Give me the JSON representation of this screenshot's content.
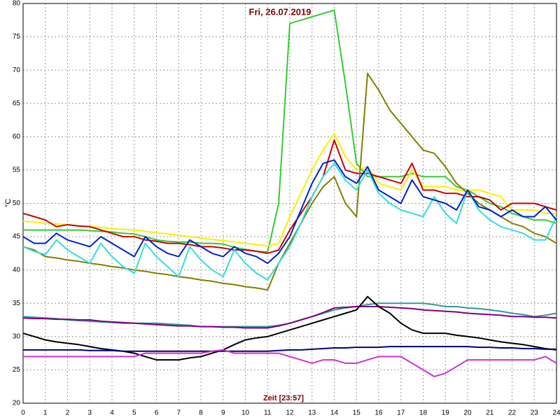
{
  "chart_data": {
    "type": "line",
    "title": "Fri, 26.07.2019",
    "xlabel": "Zeit [23:57]",
    "ylabel": "°C",
    "x": [
      0,
      0.5,
      1,
      1.5,
      2,
      2.5,
      3,
      3.5,
      4,
      4.5,
      5,
      5.5,
      6,
      6.5,
      7,
      7.5,
      8,
      8.5,
      9,
      9.5,
      10,
      10.5,
      11,
      11.5,
      12,
      12.5,
      13,
      13.5,
      14,
      14.5,
      15,
      15.5,
      16,
      16.5,
      17,
      17.5,
      18,
      18.5,
      19,
      19.5,
      20,
      20.5,
      21,
      21.5,
      22,
      22.5,
      23,
      23.5,
      24
    ],
    "xlim": [
      0,
      24
    ],
    "xticks": [
      0,
      1,
      2,
      3,
      4,
      5,
      6,
      7,
      8,
      9,
      10,
      11,
      12,
      13,
      14,
      15,
      16,
      17,
      18,
      19,
      20,
      21,
      22,
      23,
      24
    ],
    "ylim": [
      20,
      80
    ],
    "yticks": [
      20,
      25,
      30,
      35,
      40,
      45,
      50,
      55,
      60,
      65,
      70,
      75,
      80
    ],
    "grid": true,
    "series": [
      {
        "color": "#33cc33",
        "values": [
          46,
          46,
          46,
          46,
          46,
          46,
          45.9,
          45.8,
          45.7,
          45.5,
          45.4,
          45,
          44.5,
          44.3,
          44.2,
          44.2,
          44,
          44,
          43.9,
          43.4,
          43.1,
          42.8,
          42.7,
          50,
          77,
          77.5,
          78,
          78.5,
          79,
          68,
          56,
          54,
          54,
          54,
          54,
          54.5,
          54,
          54,
          54,
          52.5,
          52,
          51,
          50,
          49.5,
          48.5,
          48,
          47.5,
          47.5,
          47
        ]
      },
      {
        "color": "#ffee00",
        "values": [
          47.3,
          47.2,
          47,
          46.9,
          46.8,
          46.6,
          46.5,
          46.4,
          46.2,
          46.1,
          46,
          45.8,
          45.6,
          45.4,
          45.2,
          45,
          44.8,
          44.6,
          44.4,
          44.2,
          44,
          43.8,
          43.6,
          44,
          48,
          51.5,
          55,
          58,
          60.5,
          57,
          55,
          55.5,
          53,
          52.5,
          52,
          55,
          52.5,
          52.5,
          52.5,
          52,
          52,
          52,
          51.5,
          51,
          49,
          49,
          49,
          48.5,
          48.5
        ]
      },
      {
        "color": "#cc0000",
        "values": [
          48.5,
          48,
          47.5,
          46.5,
          46.8,
          46.6,
          46.5,
          46,
          45.5,
          45,
          45,
          44.5,
          44.3,
          44,
          44,
          43.8,
          43.5,
          43.5,
          43.3,
          43,
          43,
          42.8,
          42.5,
          43,
          46,
          48.5,
          51,
          54,
          59.5,
          55,
          54.5,
          54.5,
          54,
          53.5,
          53,
          56,
          52,
          52,
          51.5,
          51.5,
          51,
          51,
          50.5,
          49,
          50,
          50,
          50,
          49.5,
          49
        ]
      },
      {
        "color": "#808000",
        "values": [
          43.5,
          43,
          42,
          41.8,
          41.5,
          41.3,
          41,
          40.8,
          40.5,
          40.3,
          40,
          39.8,
          39.5,
          39.3,
          39,
          38.8,
          38.5,
          38.3,
          38,
          37.8,
          37.5,
          37.3,
          37,
          41,
          44,
          47,
          50,
          52.5,
          54,
          50,
          48,
          69.5,
          67,
          64,
          62,
          60,
          58,
          57.5,
          55.5,
          53,
          51.5,
          50,
          49,
          48,
          47,
          46.5,
          45.5,
          45,
          44
        ]
      },
      {
        "color": "#33dddd",
        "values": [
          43.5,
          42.8,
          42.3,
          44.5,
          43,
          42,
          41,
          44,
          42,
          40.5,
          39.5,
          44,
          42,
          40.5,
          39,
          43.5,
          41.5,
          40,
          39,
          43,
          41,
          39.5,
          38.5,
          41,
          43.5,
          47,
          51,
          54,
          56,
          53.5,
          52,
          55,
          51.5,
          50,
          49,
          48.5,
          48,
          51,
          48.5,
          47,
          52,
          49,
          47.5,
          46.5,
          46,
          45.5,
          44.5,
          44.5,
          48
        ]
      },
      {
        "color": "#0022cc",
        "values": [
          45,
          44,
          44,
          45.5,
          44.5,
          44,
          43.5,
          45,
          44,
          43,
          42,
          45,
          43.5,
          42.5,
          42,
          44.5,
          43.5,
          42.5,
          42,
          43.5,
          42.5,
          42,
          41,
          42.5,
          45,
          49,
          53,
          56,
          56.5,
          54,
          53,
          55.5,
          52,
          51,
          50,
          53.5,
          51,
          50.5,
          50,
          49,
          52,
          49.5,
          49,
          48,
          49,
          48,
          48,
          49.5,
          47.5
        ]
      },
      {
        "color": "#339999",
        "values": [
          33,
          32.9,
          32.8,
          32.7,
          32.5,
          32.4,
          32.3,
          32.2,
          32.1,
          32,
          32,
          32,
          32,
          31.9,
          31.8,
          31.7,
          31.5,
          31.5,
          31.5,
          31.5,
          31.5,
          31.5,
          31.5,
          31.7,
          32,
          32.5,
          33,
          33.5,
          34,
          34.3,
          34.5,
          34.8,
          35,
          35,
          35,
          35,
          35,
          34.8,
          34.5,
          34.5,
          34.3,
          34.2,
          34,
          33.8,
          33.5,
          33.3,
          33,
          33.2,
          33.5
        ]
      },
      {
        "color": "#800080",
        "values": [
          32.8,
          32.7,
          32.7,
          32.6,
          32.6,
          32.5,
          32.5,
          32.3,
          32.2,
          32.1,
          32,
          31.9,
          31.8,
          31.7,
          31.6,
          31.6,
          31.5,
          31.5,
          31.4,
          31.4,
          31.3,
          31.3,
          31.3,
          31.6,
          32,
          32.5,
          33,
          33.6,
          34.3,
          34.4,
          34.5,
          34.5,
          34.5,
          34.4,
          34.3,
          34.2,
          34,
          33.9,
          33.8,
          33.7,
          33.5,
          33.4,
          33.3,
          33.2,
          33,
          33,
          32.9,
          32.9,
          32.8
        ]
      },
      {
        "color": "#000000",
        "values": [
          30.5,
          30,
          29.5,
          29.2,
          29,
          28.8,
          28.5,
          28.2,
          28,
          27.8,
          27.5,
          27,
          26.5,
          26.5,
          26.5,
          26.8,
          27,
          27.5,
          28,
          28.8,
          29.5,
          29.8,
          30,
          30.5,
          31,
          31.5,
          32,
          32.5,
          33,
          33.5,
          34,
          36,
          34.5,
          33.5,
          32,
          31,
          30.5,
          30.5,
          30.5,
          30.2,
          30,
          29.8,
          29.5,
          29.2,
          29,
          28.8,
          28.5,
          28.2,
          28
        ]
      },
      {
        "color": "#000080",
        "values": [
          28,
          28,
          28,
          28,
          28,
          28,
          27.9,
          27.9,
          27.9,
          27.8,
          27.8,
          27.8,
          27.8,
          27.8,
          27.8,
          27.8,
          27.8,
          27.8,
          27.8,
          27.8,
          27.8,
          27.8,
          27.8,
          27.9,
          28,
          28,
          28.1,
          28.2,
          28.3,
          28.3,
          28.4,
          28.4,
          28.4,
          28.5,
          28.5,
          28.5,
          28.5,
          28.5,
          28.5,
          28.5,
          28.5,
          28.4,
          28.4,
          28.3,
          28.3,
          28.2,
          28.2,
          28.1,
          28.1
        ]
      },
      {
        "color": "#cc33cc",
        "values": [
          27,
          27,
          27,
          27,
          27,
          27,
          27,
          27,
          27,
          27,
          27,
          27.5,
          27.5,
          27.5,
          27.5,
          27.5,
          27.5,
          27.8,
          28,
          27.5,
          27.5,
          27.5,
          27.5,
          27.5,
          27,
          26.5,
          26,
          26.5,
          26.5,
          26,
          26,
          26.5,
          27,
          27,
          27,
          26,
          25,
          24,
          24.5,
          25.5,
          26.5,
          26.5,
          26.5,
          26.5,
          26.5,
          26.5,
          26.5,
          27,
          26
        ]
      }
    ]
  }
}
